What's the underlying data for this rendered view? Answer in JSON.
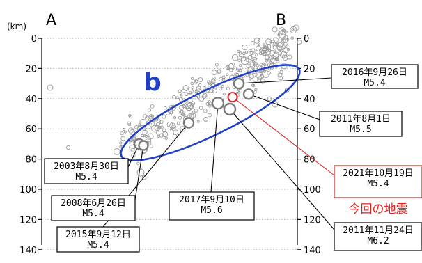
{
  "chart_data": {
    "type": "scatter",
    "title": "",
    "unit_label": "(km)",
    "section_start": "A",
    "section_end": "B",
    "region_label": "b",
    "ylim": [
      0,
      150
    ],
    "y_ticks_left": [
      "0",
      "20",
      "40",
      "60",
      "80",
      "100",
      "120",
      "140"
    ],
    "y_ticks_right": [
      "0",
      "20",
      "40",
      "60",
      "80",
      "100",
      "120",
      "140"
    ],
    "ytick_values": [
      0,
      20,
      40,
      60,
      80,
      100,
      120,
      140
    ],
    "grid": true,
    "colors": {
      "highlight": "#e02020",
      "region": "#2040c8",
      "background_events": "#9a9a9a"
    },
    "events": [
      {
        "date": "2016年9月26日",
        "magnitude": "M5.4",
        "depth": 30
      },
      {
        "date": "2011年8月1日",
        "magnitude": "M5.5",
        "depth": 37
      },
      {
        "date": "2021年10月19日",
        "magnitude": "M5.4",
        "depth": 39,
        "note": "今回の地震"
      },
      {
        "date": "2017年9月10日",
        "magnitude": "M5.6",
        "depth": 43
      },
      {
        "date": "2011年11月24日",
        "magnitude": "M6.2",
        "depth": 47
      },
      {
        "date": "2015年9月12日",
        "magnitude": "M5.4",
        "depth": 56
      },
      {
        "date": "2003年8月30日",
        "magnitude": "M5.4",
        "depth": 70
      },
      {
        "date": "2008年6月26日",
        "magnitude": "M5.4",
        "depth": 71
      }
    ]
  }
}
